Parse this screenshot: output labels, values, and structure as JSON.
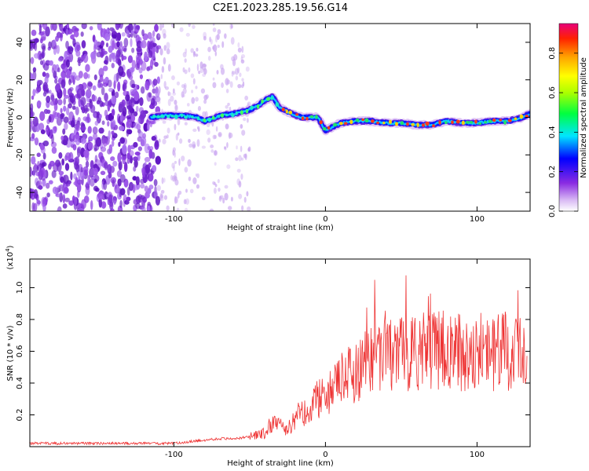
{
  "title": "C2E1.2023.285.19.56.G14",
  "chart_data": [
    {
      "type": "heatmap",
      "xlabel": "Height of straight line (km)",
      "ylabel": "Frequency (Hz)",
      "xlim": [
        -195,
        135
      ],
      "ylim": [
        -50,
        50
      ],
      "xticks": [
        -100,
        0,
        100
      ],
      "yticks": [
        -40,
        -20,
        0,
        20,
        40
      ],
      "colorbar": {
        "label": "Normalized spectral amplitude",
        "range": [
          0,
          0.95
        ],
        "ticks": [
          0.0,
          0.2,
          0.4,
          0.6,
          0.8
        ]
      },
      "signal_trace": {
        "x": [
          -115,
          -105,
          -95,
          -85,
          -80,
          -75,
          -70,
          -60,
          -50,
          -45,
          -40,
          -35,
          -30,
          -25,
          -20,
          -15,
          -10,
          -5,
          0,
          5,
          10,
          20,
          30,
          40,
          50,
          60,
          70,
          80,
          90,
          100,
          110,
          120,
          130,
          135
        ],
        "y": [
          0,
          1,
          1,
          0,
          -2,
          -1,
          1,
          2,
          4,
          6,
          9,
          11,
          5,
          3,
          1,
          0,
          0,
          0,
          -7,
          -5,
          -3,
          -2,
          -2,
          -3,
          -3,
          -4,
          -4,
          -2,
          -3,
          -3,
          -2,
          -2,
          0,
          2
        ]
      },
      "noise_region_x": [
        -195,
        -110
      ]
    },
    {
      "type": "line",
      "xlabel": "Height of straight line (km)",
      "ylabel": "SNR (10 * v/v)",
      "y_multiplier_label": "(x10",
      "y_multiplier_exp": "4",
      "y_multiplier_close": ")",
      "xlim": [
        -195,
        135
      ],
      "ylim": [
        0,
        1.18
      ],
      "xticks": [
        -100,
        0,
        100
      ],
      "yticks": [
        0.2,
        0.4,
        0.6,
        0.8,
        1.0
      ],
      "color": "#ee3333",
      "series": [
        {
          "x": [
            -195,
            -170,
            -150,
            -130,
            -110,
            -100,
            -90,
            -80,
            -70,
            -60,
            -50,
            -40,
            -35,
            -30,
            -25,
            -20,
            -15,
            -10,
            -5,
            0,
            5,
            10,
            20,
            30,
            40,
            50,
            60,
            70,
            80,
            90,
            100,
            110,
            120,
            130,
            133
          ],
          "values": [
            0.02,
            0.02,
            0.02,
            0.02,
            0.02,
            0.02,
            0.03,
            0.04,
            0.05,
            0.05,
            0.06,
            0.08,
            0.15,
            0.12,
            0.1,
            0.18,
            0.2,
            0.25,
            0.3,
            0.28,
            0.35,
            0.4,
            0.45,
            0.55,
            0.58,
            0.55,
            0.58,
            0.57,
            0.58,
            0.57,
            0.58,
            0.55,
            0.58,
            0.6,
            0.62
          ]
        }
      ]
    }
  ]
}
